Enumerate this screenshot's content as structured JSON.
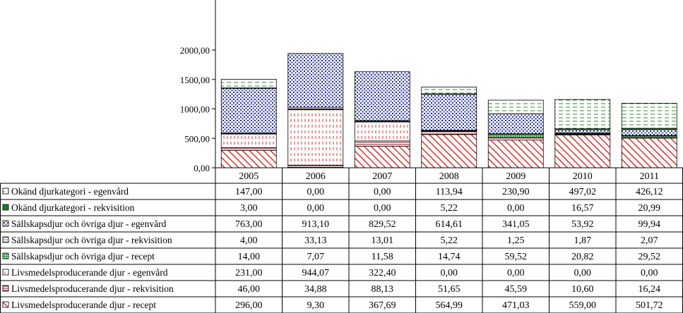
{
  "chart_data": {
    "type": "bar",
    "stacked": true,
    "categories": [
      "2005",
      "2006",
      "2007",
      "2008",
      "2009",
      "2010",
      "2011"
    ],
    "ylim": [
      0,
      2000
    ],
    "yticks": [
      "0,00",
      "500,00",
      "1000,00",
      "1500,00",
      "2000,00"
    ],
    "grid": false,
    "legend": "table-below",
    "series": [
      {
        "name": "Livsmedelsproducerande djur - recept",
        "values": [
          296.0,
          9.3,
          367.69,
          564.99,
          471.03,
          559.0,
          501.72
        ],
        "labels": [
          "296,00",
          "9,30",
          "367,69",
          "564,99",
          "471,03",
          "559,00",
          "501,72"
        ],
        "color": "#e03030",
        "pattern": "diag-red"
      },
      {
        "name": "Livsmedelsproducerande djur - rekvisition",
        "values": [
          46.0,
          34.88,
          88.13,
          51.65,
          45.59,
          10.6,
          16.24
        ],
        "labels": [
          "46,00",
          "34,88",
          "88,13",
          "51,65",
          "45,59",
          "10,60",
          "16,24"
        ],
        "color": "#8b1a1a",
        "pattern": "hlines-darkred"
      },
      {
        "name": "Livsmedelsproducerande djur - egenvård",
        "values": [
          231.0,
          944.07,
          322.4,
          0.0,
          0.0,
          0.0,
          0.0
        ],
        "labels": [
          "231,00",
          "944,07",
          "322,40",
          "0,00",
          "0,00",
          "0,00",
          "0,00"
        ],
        "color": "#e03030",
        "pattern": "vdash-red"
      },
      {
        "name": "Sällskapsdjur och övriga djur - recept",
        "values": [
          14.0,
          7.07,
          11.58,
          14.74,
          59.52,
          20.82,
          29.52
        ],
        "labels": [
          "14,00",
          "7,07",
          "11,58",
          "14,74",
          "59,52",
          "20,82",
          "29,52"
        ],
        "color": "#5cc85c",
        "pattern": "grid-green"
      },
      {
        "name": "Sällskapsdjur och övriga djur - rekvisition",
        "values": [
          4.0,
          33.13,
          13.01,
          5.22,
          1.25,
          1.87,
          2.07
        ],
        "labels": [
          "4,00",
          "33,13",
          "13,01",
          "5,22",
          "1,25",
          "1,87",
          "2,07"
        ],
        "color": "#808080",
        "pattern": "hlines-gray"
      },
      {
        "name": "Sällskapsdjur och övriga djur - egenvård",
        "values": [
          763.0,
          913.1,
          829.52,
          614.61,
          341.05,
          53.92,
          99.94
        ],
        "labels": [
          "763,00",
          "913,10",
          "829,52",
          "614,61",
          "341,05",
          "53,92",
          "99,94"
        ],
        "color": "#1a2a9a",
        "pattern": "dots-blue"
      },
      {
        "name": "Okänd djurkategori - rekvisition",
        "values": [
          3.0,
          0.0,
          0.0,
          5.22,
          0.0,
          16.57,
          20.99
        ],
        "labels": [
          "3,00",
          "0,00",
          "0,00",
          "5,22",
          "0,00",
          "16,57",
          "20,99"
        ],
        "color": "#1e7a1e",
        "pattern": "solid-green"
      },
      {
        "name": "Okänd djurkategori - egenvård",
        "values": [
          147.0,
          0.0,
          0.0,
          113.94,
          230.9,
          497.02,
          426.12
        ],
        "labels": [
          "147,00",
          "0,00",
          "0,00",
          "113,94",
          "230,90",
          "497,02",
          "426,12"
        ],
        "color": "#2e8b2e",
        "pattern": "hdash-green"
      }
    ],
    "table_order": [
      7,
      6,
      5,
      4,
      3,
      2,
      1,
      0
    ]
  }
}
